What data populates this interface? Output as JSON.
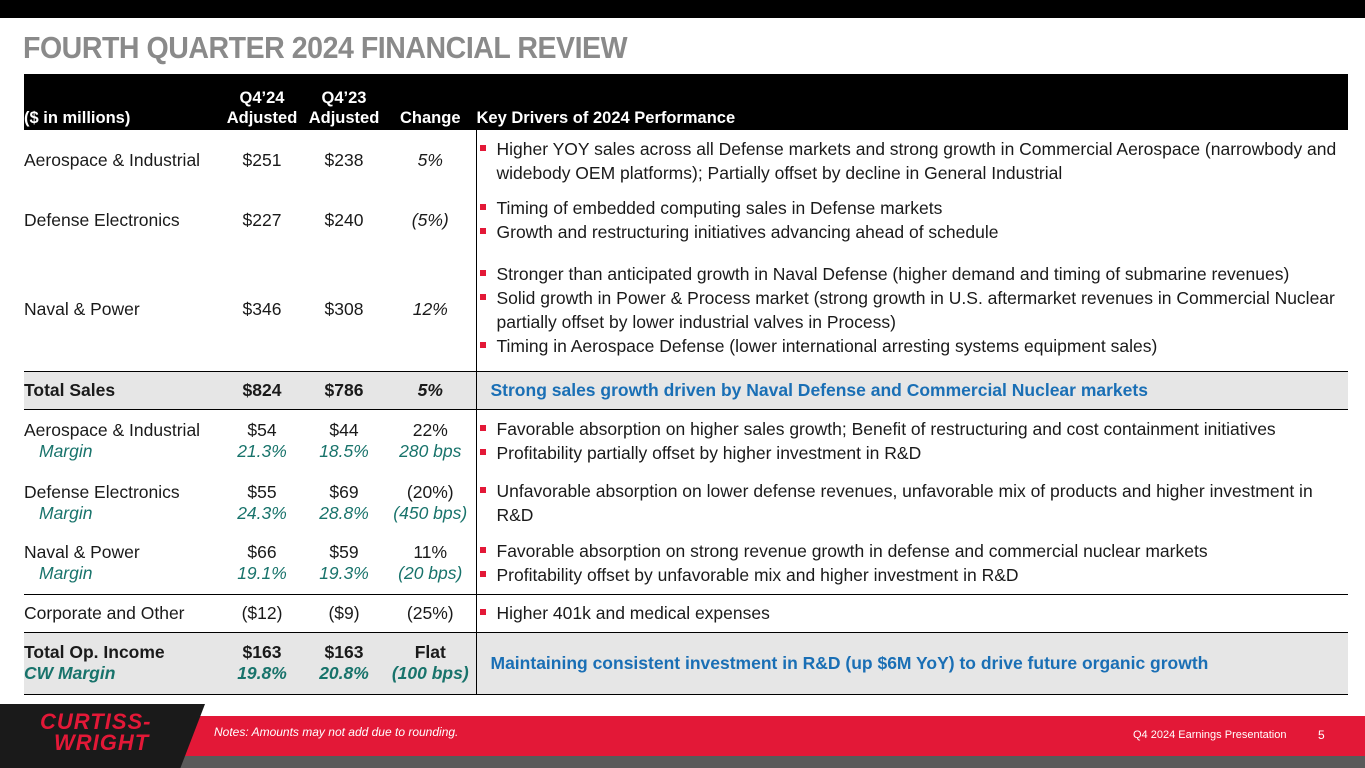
{
  "title": "FOURTH QUARTER 2024 FINANCIAL REVIEW",
  "header": {
    "units": "($ in millions)",
    "q424_line1": "Q4’24",
    "q424_line2": "Adjusted",
    "q423_line1": "Q4’23",
    "q423_line2": "Adjusted",
    "change": "Change",
    "drivers": "Key Drivers of 2024 Performance"
  },
  "sales": [
    {
      "segment": "Aerospace & Industrial",
      "q424": "$251",
      "q423": "$238",
      "change": "5%",
      "drivers": [
        "Higher YOY sales across all Defense markets and strong growth in Commercial Aerospace (narrowbody and widebody OEM platforms); Partially offset by decline in General Industrial"
      ]
    },
    {
      "segment": "Defense Electronics",
      "q424": "$227",
      "q423": "$240",
      "change": "(5%)",
      "drivers": [
        "Timing of embedded computing sales in Defense markets",
        "Growth and restructuring initiatives advancing ahead of schedule"
      ]
    },
    {
      "segment": "Naval & Power",
      "q424": "$346",
      "q423": "$308",
      "change": "12%",
      "drivers": [
        "Stronger than anticipated growth in Naval Defense (higher demand and timing of submarine revenues)",
        "Solid growth in Power & Process market (strong growth in U.S. aftermarket revenues in Commercial Nuclear partially offset by lower industrial valves in Process)",
        "Timing in Aerospace Defense (lower international arresting systems equipment sales)"
      ]
    }
  ],
  "total_sales": {
    "label": "Total Sales",
    "q424": "$824",
    "q423": "$786",
    "change": "5%",
    "driver": "Strong sales growth driven by Naval Defense and Commercial Nuclear markets"
  },
  "op_income": [
    {
      "segment": "Aerospace & Industrial",
      "q424": "$54",
      "q423": "$44",
      "change": "22%",
      "margin_label": "Margin",
      "margin_q424": "21.3%",
      "margin_q423": "18.5%",
      "margin_change": "280 bps",
      "drivers": [
        "Favorable absorption on higher sales growth; Benefit of restructuring and cost containment initiatives",
        "Profitability partially offset by higher investment in R&D"
      ]
    },
    {
      "segment": "Defense Electronics",
      "q424": "$55",
      "q423": "$69",
      "change": "(20%)",
      "margin_label": "Margin",
      "margin_q424": "24.3%",
      "margin_q423": "28.8%",
      "margin_change": "(450 bps)",
      "drivers": [
        "Unfavorable absorption on lower defense revenues, unfavorable mix of products and higher investment in R&D"
      ]
    },
    {
      "segment": "Naval & Power",
      "q424": "$66",
      "q423": "$59",
      "change": "11%",
      "margin_label": "Margin",
      "margin_q424": "19.1%",
      "margin_q423": "19.3%",
      "margin_change": "(20 bps)",
      "drivers": [
        "Favorable absorption on strong revenue growth in defense and commercial nuclear markets",
        "Profitability offset by unfavorable mix and higher investment in R&D"
      ]
    }
  ],
  "corporate": {
    "label": "Corporate and Other",
    "q424": "($12)",
    "q423": "($9)",
    "change": "(25%)",
    "drivers": [
      "Higher 401k and medical expenses"
    ]
  },
  "total_op": {
    "label": "Total Op. Income",
    "q424": "$163",
    "q423": "$163",
    "change": "Flat",
    "margin_label": "CW Margin",
    "margin_q424": "19.8%",
    "margin_q423": "20.8%",
    "margin_change": "(100 bps)",
    "driver": "Maintaining consistent investment in R&D (up $6M YoY) to drive future organic growth"
  },
  "footer": {
    "logo_line1": "CURTISS-",
    "logo_line2": "WRIGHT",
    "notes": "Notes: Amounts may not add due to rounding.",
    "presentation": "Q4 2024 Earnings Presentation",
    "page": "5"
  },
  "colors": {
    "accent_red": "#e31837",
    "blue": "#1a6fb5",
    "teal": "#18736b",
    "title_gray": "#8a8a8a"
  }
}
